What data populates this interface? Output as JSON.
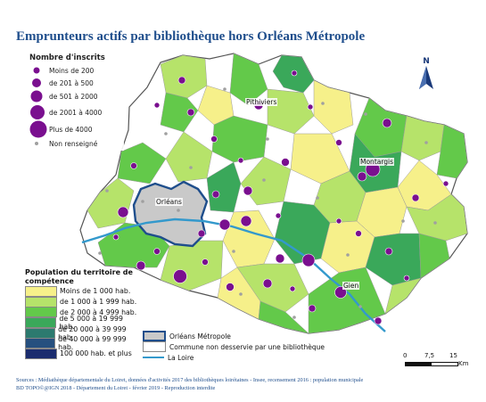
{
  "title": "Emprunteurs actifs par bibliothèque hors Orléans Métropole",
  "legend_inscrits": {
    "title": "Nombre d'inscrits",
    "items": [
      {
        "label": "Moins de 200",
        "size": 1
      },
      {
        "label": "de 201 à 500",
        "size": 2
      },
      {
        "label": "de 501 à 2000",
        "size": 3
      },
      {
        "label": "de 2001 à 4000",
        "size": 4
      },
      {
        "label": "Plus de 4000",
        "size": 5
      }
    ],
    "unknown_label": "Non renseigné",
    "dot_color": "#7a0f8f",
    "unknown_color": "#a0a0a0"
  },
  "legend_population": {
    "title": "Population du territoire de compétence",
    "items": [
      {
        "label": "Moins de 1 000 hab.",
        "color": "#f6f08a"
      },
      {
        "label": "de 1 000 à 1 999 hab.",
        "color": "#b6e36a"
      },
      {
        "label": "de 2 000 à 4 999 hab.",
        "color": "#63c94a"
      },
      {
        "label": "de 5 000 à 19 999 hab.",
        "color": "#3aa85a"
      },
      {
        "label": "de 20 000 à 39 999 hab.",
        "color": "#2c7a6f"
      },
      {
        "label": "de 40 000 à 99 999 hab.",
        "color": "#26507f"
      },
      {
        "label": "100 000 hab. et plus",
        "color": "#1b2c6e"
      }
    ]
  },
  "legend_other": {
    "metropole": "Orléans Métropole",
    "non_desservie": "Commune non desservie par une bibliothèque",
    "loire": "La Loire"
  },
  "cities": {
    "pithiviers": "Pithiviers",
    "montargis": "Montargis",
    "orleans": "Orléans",
    "gien": "Gien"
  },
  "north_label": "N",
  "scale": {
    "t0": "0",
    "t1": "7,5",
    "t2": "15",
    "unit": "Km"
  },
  "sources": {
    "line1": "Sources : Médiathèque départementale du Loiret, données d'activités 2017 des bibliothèques loirétaines - Insee, recensement 2016 : population municipale",
    "line2": "BD TOPO©@IGN 2018 - Département du Loiret - février 2019 - Reproduction interdite"
  },
  "colors": {
    "metropole_border": "#1f4e8c",
    "metropole_fill": "#c9c9c9",
    "loire": "#3399cc",
    "non_desservie": "#ffffff"
  }
}
